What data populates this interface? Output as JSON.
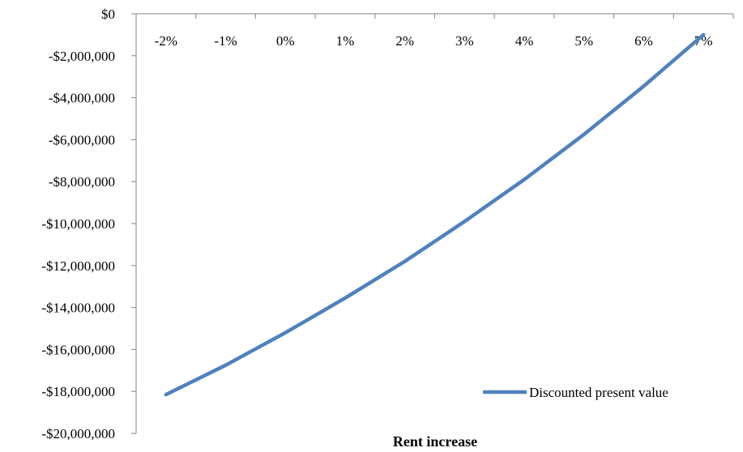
{
  "chart_data": {
    "type": "line",
    "title": "",
    "xlabel": "Rent increase",
    "ylabel": "",
    "categories": [
      "-2%",
      "-1%",
      "0%",
      "1%",
      "2%",
      "3%",
      "4%",
      "5%",
      "6%",
      "7%"
    ],
    "series": [
      {
        "name": "Discounted present value",
        "color": "#4F81BD",
        "values": [
          -18150000,
          -16750000,
          -15200000,
          -13550000,
          -11800000,
          -9900000,
          -7900000,
          -5750000,
          -3450000,
          -1000000
        ]
      }
    ],
    "ylim": [
      -20000000,
      0
    ],
    "y_ticks": [
      0,
      -2000000,
      -4000000,
      -6000000,
      -8000000,
      -10000000,
      -12000000,
      -14000000,
      -16000000,
      -18000000,
      -20000000
    ],
    "y_tick_labels": [
      "$0",
      "-$2,000,000",
      "-$4,000,000",
      "-$6,000,000",
      "-$8,000,000",
      "-$10,000,000",
      "-$12,000,000",
      "-$14,000,000",
      "-$16,000,000",
      "-$18,000,000",
      "-$20,000,000"
    ],
    "x_axis_position": "top",
    "grid": false,
    "legend_position": "bottom-right"
  }
}
